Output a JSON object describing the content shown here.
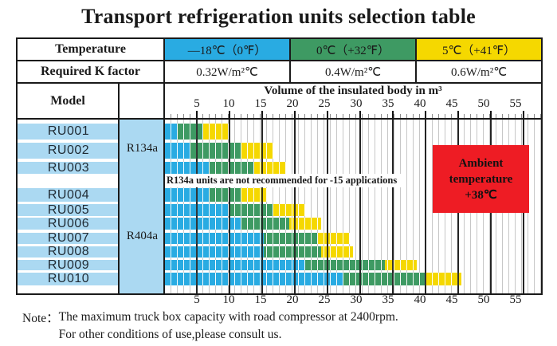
{
  "title": "Transport refrigeration units selection table",
  "table": {
    "temperature_label": "Temperature",
    "k_factor_label": "Required K factor",
    "model_label": "Model",
    "temp_columns": [
      {
        "temperature": "—18℃（0℉）",
        "k_factor": "0.32W/m²℃",
        "color": "#29abe2"
      },
      {
        "temperature": "0℃（+32℉）",
        "k_factor": "0.4W/m²℃",
        "color": "#3e9a63"
      },
      {
        "temperature": "5℃（+41℉）",
        "k_factor": "0.6W/m²℃",
        "color": "#f5d800"
      }
    ]
  },
  "chart_data": {
    "type": "bar",
    "orientation": "horizontal-range",
    "title": "Volume of the insulated body in m³",
    "x_axis": {
      "label": "Volume of the insulated body in m³",
      "ticks": [
        5,
        10,
        15,
        20,
        25,
        30,
        35,
        40,
        45,
        50,
        55
      ],
      "range": [
        0,
        59
      ],
      "minor_step": 1
    },
    "categories": [
      "RU001",
      "RU002",
      "RU003",
      "RU004",
      "RU005",
      "RU006",
      "RU007",
      "RU008",
      "RU009",
      "RU010"
    ],
    "series": [
      {
        "name": "—18℃（0℉）",
        "color": "#29abe2",
        "values": [
          2,
          4,
          7,
          7,
          10,
          12,
          15.5,
          15.5,
          22,
          28
        ]
      },
      {
        "name": "0℃（+32℉）",
        "color": "#3e9a63",
        "values": [
          6,
          12,
          14,
          12,
          17,
          19.5,
          24,
          24.5,
          34.5,
          41
        ]
      },
      {
        "name": "5℃（+41℉）",
        "color": "#f5d800",
        "values": [
          10,
          17,
          19,
          16,
          22,
          24.5,
          29,
          29.5,
          39.5,
          46.5
        ]
      }
    ],
    "refrigerant_groups": [
      {
        "label": "R134a",
        "models": [
          "RU001",
          "RU002",
          "RU003"
        ]
      },
      {
        "label": "R404a",
        "models": [
          "RU004",
          "RU005",
          "RU006",
          "RU007",
          "RU008",
          "RU009",
          "RU010"
        ]
      }
    ],
    "annotations": {
      "warning": "R134a units are not recommended for -15 applications",
      "ambient_line1": "Ambient",
      "ambient_line2": "temperature",
      "ambient_line3": "+38℃",
      "ambient_color": "#ee1c24"
    },
    "model_cell_color": "#abd9f2"
  },
  "footnote": {
    "label": "Note：",
    "line1": "The maximum truck box capacity with road compressor at 2400rpm.",
    "line2": "For other conditions of use,please consult us."
  }
}
